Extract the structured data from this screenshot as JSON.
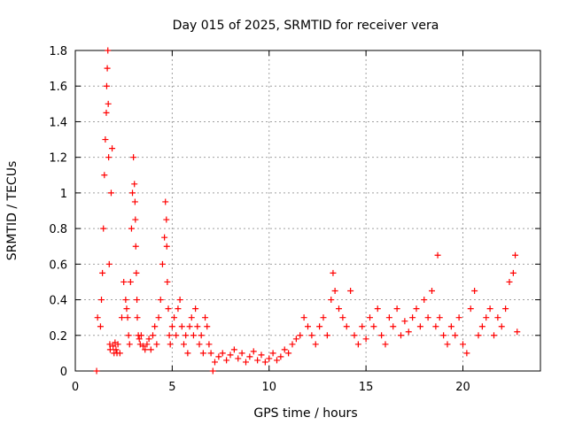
{
  "chart_data": {
    "type": "scatter",
    "title": "Day 015 of 2025, SRMTID for receiver vera",
    "xlabel": "GPS time / hours",
    "ylabel": "SRMTID / TECUs",
    "xlim": [
      0,
      24
    ],
    "ylim": [
      0,
      1.8
    ],
    "xticks": [
      0,
      5,
      10,
      15,
      20
    ],
    "xtick_labels": [
      "0",
      "5",
      "10",
      "15",
      "20"
    ],
    "yticks": [
      0,
      0.2,
      0.4,
      0.6,
      0.8,
      1.0,
      1.2,
      1.4,
      1.6,
      1.8
    ],
    "ytick_labels": [
      "0",
      "0.2",
      "0.4",
      "0.6",
      "0.8",
      "1",
      "1.2",
      "1.4",
      "1.6",
      "1.8"
    ],
    "grid": true,
    "marker": "+",
    "series": [
      {
        "name": "SRMTID",
        "color": "#ff0000",
        "x": [
          1.1,
          1.15,
          1.3,
          1.35,
          1.4,
          1.45,
          1.5,
          1.55,
          1.6,
          1.62,
          1.65,
          1.68,
          1.7,
          1.72,
          1.75,
          1.78,
          1.8,
          1.85,
          1.9,
          1.95,
          2.0,
          2.05,
          2.1,
          2.15,
          2.2,
          2.3,
          2.4,
          2.5,
          2.6,
          2.65,
          2.7,
          2.75,
          2.8,
          2.85,
          2.9,
          2.95,
          3.0,
          3.05,
          3.08,
          3.1,
          3.12,
          3.15,
          3.18,
          3.2,
          3.25,
          3.3,
          3.35,
          3.4,
          3.5,
          3.6,
          3.7,
          3.8,
          3.9,
          4.0,
          4.1,
          4.2,
          4.3,
          4.4,
          4.5,
          4.6,
          4.65,
          4.7,
          4.72,
          4.75,
          4.8,
          4.85,
          4.9,
          5.0,
          5.1,
          5.2,
          5.3,
          5.4,
          5.5,
          5.6,
          5.7,
          5.8,
          5.9,
          6.0,
          6.1,
          6.2,
          6.3,
          6.4,
          6.5,
          6.6,
          6.7,
          6.8,
          6.9,
          7.0,
          7.1,
          7.2,
          7.4,
          7.6,
          7.8,
          8.0,
          8.2,
          8.4,
          8.6,
          8.8,
          9.0,
          9.2,
          9.4,
          9.6,
          9.8,
          10.0,
          10.2,
          10.4,
          10.6,
          10.8,
          11.0,
          11.2,
          11.4,
          11.6,
          11.8,
          12.0,
          12.2,
          12.4,
          12.6,
          12.8,
          13.0,
          13.2,
          13.3,
          13.4,
          13.6,
          13.8,
          14.0,
          14.2,
          14.4,
          14.6,
          14.8,
          15.0,
          15.2,
          15.4,
          15.6,
          15.8,
          16.0,
          16.2,
          16.4,
          16.6,
          16.8,
          17.0,
          17.2,
          17.4,
          17.6,
          17.8,
          18.0,
          18.2,
          18.4,
          18.6,
          18.7,
          18.8,
          19.0,
          19.2,
          19.4,
          19.6,
          19.8,
          20.0,
          20.2,
          20.4,
          20.6,
          20.8,
          21.0,
          21.2,
          21.4,
          21.6,
          21.8,
          22.0,
          22.2,
          22.4,
          22.6,
          22.7,
          22.8
        ],
        "y": [
          0.0,
          0.3,
          0.25,
          0.4,
          0.55,
          0.8,
          1.1,
          1.3,
          1.45,
          1.6,
          1.7,
          1.8,
          1.5,
          1.2,
          0.6,
          0.15,
          0.12,
          1.0,
          1.25,
          0.14,
          0.1,
          0.16,
          0.12,
          0.1,
          0.15,
          0.1,
          0.3,
          0.5,
          0.4,
          0.35,
          0.3,
          0.2,
          0.15,
          0.5,
          0.8,
          1.0,
          1.2,
          1.05,
          0.95,
          0.85,
          0.7,
          0.55,
          0.4,
          0.3,
          0.2,
          0.18,
          0.15,
          0.2,
          0.14,
          0.12,
          0.15,
          0.18,
          0.12,
          0.2,
          0.25,
          0.15,
          0.3,
          0.4,
          0.6,
          0.75,
          0.95,
          0.85,
          0.7,
          0.5,
          0.35,
          0.2,
          0.15,
          0.25,
          0.3,
          0.2,
          0.35,
          0.4,
          0.25,
          0.15,
          0.2,
          0.1,
          0.25,
          0.3,
          0.2,
          0.35,
          0.25,
          0.15,
          0.2,
          0.1,
          0.3,
          0.25,
          0.15,
          0.1,
          0.0,
          0.05,
          0.08,
          0.1,
          0.06,
          0.09,
          0.12,
          0.07,
          0.1,
          0.05,
          0.08,
          0.11,
          0.06,
          0.09,
          0.05,
          0.07,
          0.1,
          0.06,
          0.08,
          0.12,
          0.1,
          0.15,
          0.18,
          0.2,
          0.3,
          0.25,
          0.2,
          0.15,
          0.25,
          0.3,
          0.2,
          0.4,
          0.55,
          0.45,
          0.35,
          0.3,
          0.25,
          0.45,
          0.2,
          0.15,
          0.25,
          0.18,
          0.3,
          0.25,
          0.35,
          0.2,
          0.15,
          0.3,
          0.25,
          0.35,
          0.2,
          0.28,
          0.22,
          0.3,
          0.35,
          0.25,
          0.4,
          0.3,
          0.45,
          0.25,
          0.65,
          0.3,
          0.2,
          0.15,
          0.25,
          0.2,
          0.3,
          0.15,
          0.1,
          0.35,
          0.45,
          0.2,
          0.25,
          0.3,
          0.35,
          0.2,
          0.3,
          0.25,
          0.35,
          0.5,
          0.55,
          0.65,
          0.22
        ]
      }
    ]
  }
}
